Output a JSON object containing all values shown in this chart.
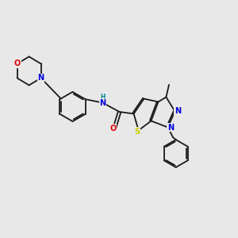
{
  "bg_color": "#e8e8e8",
  "bond_color": "#1a1a1a",
  "atom_colors": {
    "N": "#0000dd",
    "O": "#dd0000",
    "S": "#cccc00",
    "C": "#1a1a1a",
    "H": "#008888"
  },
  "lw": 1.3,
  "fs": 7.0,
  "fs_small": 5.5
}
